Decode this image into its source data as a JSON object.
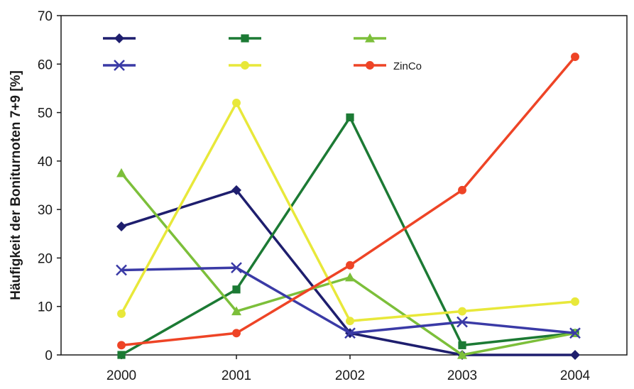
{
  "chart_data": {
    "type": "line",
    "title": "",
    "xlabel": "",
    "ylabel": "Häufigkeit der Boniturnoten 7+9 [%]",
    "categories": [
      "2000",
      "2001",
      "2002",
      "2003",
      "2004"
    ],
    "ylim": [
      0,
      70
    ],
    "yticks": [
      0,
      10,
      20,
      30,
      40,
      50,
      60,
      70
    ],
    "grid": false,
    "legend_position": "top-left inside plot, 3 columns x 2 rows",
    "series": [
      {
        "name": "",
        "color": "#1e1e6e",
        "marker": "diamond",
        "values": [
          26.5,
          34,
          4.5,
          0,
          0
        ]
      },
      {
        "name": "",
        "color": "#1c7a34",
        "marker": "square",
        "values": [
          0,
          13.5,
          49,
          2,
          4.5
        ]
      },
      {
        "name": "",
        "color": "#7cbf3a",
        "marker": "triangle",
        "values": [
          37.5,
          9,
          16,
          0,
          4.5
        ]
      },
      {
        "name": "",
        "color": "#3a3aa6",
        "marker": "x",
        "values": [
          17.5,
          18,
          4.5,
          6.8,
          4.5
        ]
      },
      {
        "name": "",
        "color": "#e8e83a",
        "marker": "circle",
        "values": [
          8.5,
          52,
          7,
          9,
          11
        ]
      },
      {
        "name": "ZinCo",
        "color": "#ee4426",
        "marker": "circle",
        "values": [
          2,
          4.5,
          18.5,
          34,
          61.5
        ]
      }
    ]
  }
}
